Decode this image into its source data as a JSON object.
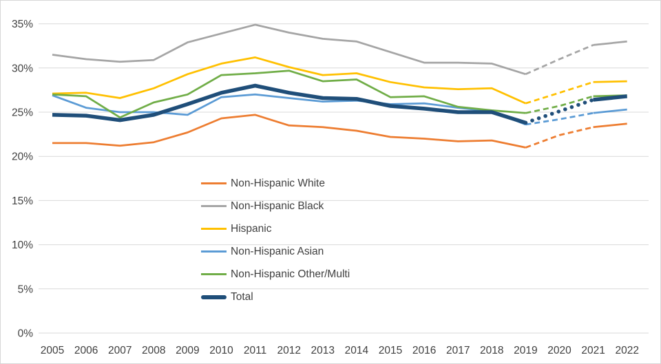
{
  "chart_data": {
    "type": "line",
    "title": "",
    "x_label": "",
    "y_label": "",
    "x": [
      2005,
      2006,
      2007,
      2008,
      2009,
      2010,
      2011,
      2012,
      2013,
      2014,
      2015,
      2016,
      2017,
      2018,
      2019,
      2020,
      2021,
      2022
    ],
    "ylim": [
      0,
      35
    ],
    "y_tick_values": [
      0,
      5,
      10,
      15,
      20,
      25,
      30,
      35
    ],
    "y_tick_labels": [
      "0%",
      "5%",
      "10%",
      "15%",
      "20%",
      "25%",
      "30%",
      "35%"
    ],
    "grid": "horizontal",
    "legend_position": "center-left-overlay",
    "solid_until_year": 2019,
    "projected_until_year": 2021,
    "series": [
      {
        "name": "Non-Hispanic White",
        "color": "#ED7D31",
        "line_width": 2.75,
        "projection_style": "dash",
        "values": [
          21.5,
          21.5,
          21.2,
          21.6,
          22.7,
          24.3,
          24.7,
          23.5,
          23.3,
          22.9,
          22.2,
          22.0,
          21.7,
          21.8,
          21.0,
          22.4,
          23.3,
          23.7
        ]
      },
      {
        "name": "Non-Hispanic Black",
        "color": "#A5A5A5",
        "line_width": 2.75,
        "projection_style": "dash",
        "values": [
          31.5,
          31.0,
          30.7,
          30.9,
          32.9,
          33.9,
          34.9,
          34.0,
          33.3,
          33.0,
          31.8,
          30.6,
          30.6,
          30.5,
          29.3,
          31.0,
          32.6,
          33.0
        ]
      },
      {
        "name": "Hispanic",
        "color": "#FFC000",
        "line_width": 2.75,
        "projection_style": "dash",
        "values": [
          27.1,
          27.2,
          26.6,
          27.7,
          29.3,
          30.5,
          31.2,
          30.1,
          29.2,
          29.4,
          28.4,
          27.8,
          27.6,
          27.7,
          26.0,
          27.2,
          28.4,
          28.5
        ]
      },
      {
        "name": "Non-Hispanic Asian",
        "color": "#5B9BD5",
        "line_width": 2.75,
        "projection_style": "dash",
        "values": [
          26.9,
          25.5,
          25.0,
          25.0,
          24.7,
          26.7,
          27.0,
          26.6,
          26.2,
          26.3,
          25.9,
          26.0,
          25.5,
          25.1,
          23.6,
          24.2,
          24.9,
          25.3
        ]
      },
      {
        "name": "Non-Hispanic Other/Multi",
        "color": "#70AD47",
        "line_width": 2.75,
        "projection_style": "dash",
        "values": [
          27.0,
          26.8,
          24.4,
          26.1,
          27.0,
          29.2,
          29.4,
          29.7,
          28.5,
          28.7,
          26.7,
          26.8,
          25.6,
          25.2,
          24.9,
          25.7,
          26.8,
          26.9
        ]
      },
      {
        "name": "Total",
        "color": "#1F4E79",
        "line_width": 5.5,
        "projection_style": "dot",
        "values": [
          24.7,
          24.6,
          24.1,
          24.7,
          25.9,
          27.2,
          28.0,
          27.2,
          26.6,
          26.5,
          25.7,
          25.4,
          25.0,
          25.0,
          23.8,
          25.1,
          26.4,
          26.8
        ]
      }
    ],
    "colors": {
      "gridline": "#D9D9D9",
      "axis_text": "#404040",
      "legend_text": "#404040",
      "background": "#FFFFFF"
    }
  }
}
